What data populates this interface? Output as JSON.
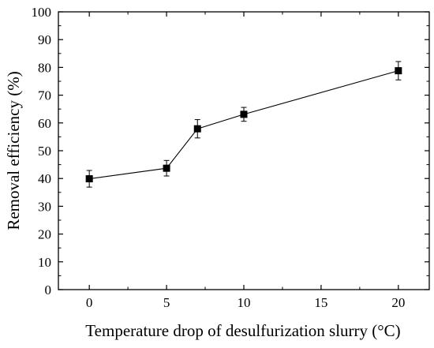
{
  "chart_data": {
    "type": "line",
    "title": "",
    "xlabel": "Temperature drop of desulfurization slurry (°C)",
    "ylabel": "Removal efficiency (%)",
    "xlim": [
      -2,
      22
    ],
    "ylim": [
      0,
      100
    ],
    "x_ticks": [
      0,
      5,
      10,
      15,
      20
    ],
    "y_ticks": [
      0,
      10,
      20,
      30,
      40,
      50,
      60,
      70,
      80,
      90,
      100
    ],
    "x_tick_labels": [
      "0",
      "5",
      "10",
      "15",
      "20"
    ],
    "y_tick_labels": [
      "0",
      "10",
      "20",
      "30",
      "40",
      "50",
      "60",
      "70",
      "80",
      "90",
      "100"
    ],
    "grid": false,
    "legend": "none",
    "marker": "square",
    "color": "#000000",
    "series": [
      {
        "x": [
          0,
          5,
          7,
          10,
          20
        ],
        "values": [
          39.9,
          43.7,
          57.9,
          63.1,
          78.8
        ],
        "error": [
          3.0,
          2.8,
          3.3,
          2.5,
          3.3
        ]
      }
    ]
  }
}
